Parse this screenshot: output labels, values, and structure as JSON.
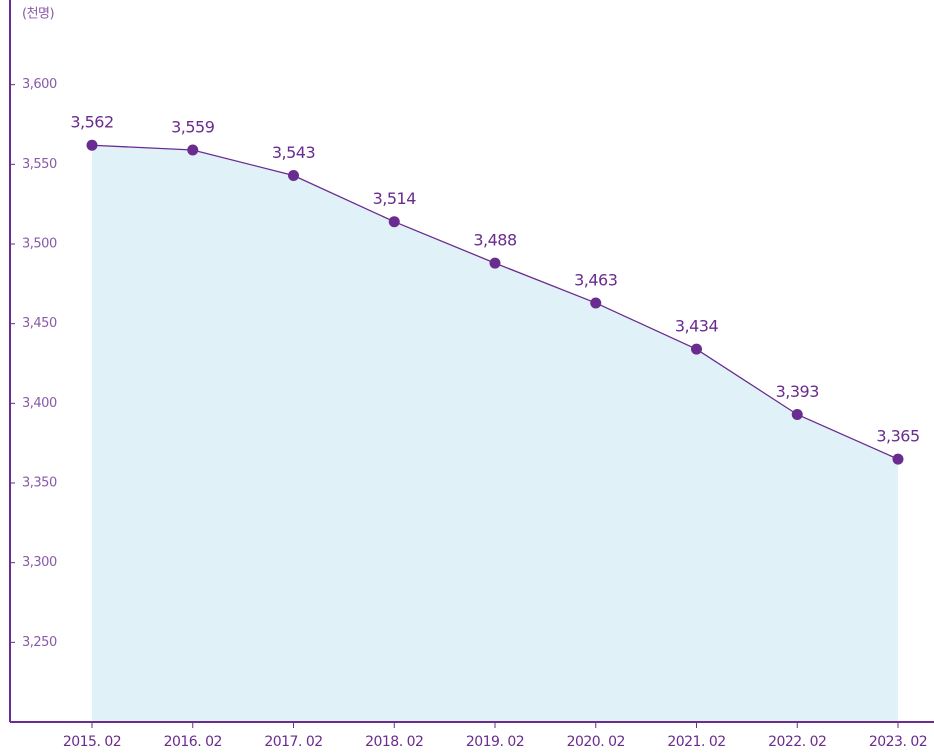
{
  "chart_data": {
    "type": "area",
    "y_label": "(천명)",
    "categories": [
      "2015. 02",
      "2016. 02",
      "2017. 02",
      "2018. 02",
      "2019. 02",
      "2020. 02",
      "2021. 02",
      "2022. 02",
      "2023. 02"
    ],
    "values": [
      3562,
      3559,
      3543,
      3514,
      3488,
      3463,
      3434,
      3393,
      3365
    ],
    "value_labels": [
      "3,562",
      "3,559",
      "3,543",
      "3,514",
      "3,488",
      "3,463",
      "3,434",
      "3,393",
      "3,365"
    ],
    "color": "#6a2c8e",
    "fill_color": "#e0f2f8",
    "ylim": [
      3200,
      3650
    ],
    "yticks": [
      {
        "value": 3250,
        "label": "3,250"
      },
      {
        "value": 3300,
        "label": "3,300"
      },
      {
        "value": 3350,
        "label": "3,350"
      },
      {
        "value": 3400,
        "label": "3,400"
      },
      {
        "value": 3450,
        "label": "3,450"
      },
      {
        "value": 3500,
        "label": "3,500"
      },
      {
        "value": 3550,
        "label": "3,550"
      },
      {
        "value": 3600,
        "label": "3,600"
      }
    ]
  }
}
